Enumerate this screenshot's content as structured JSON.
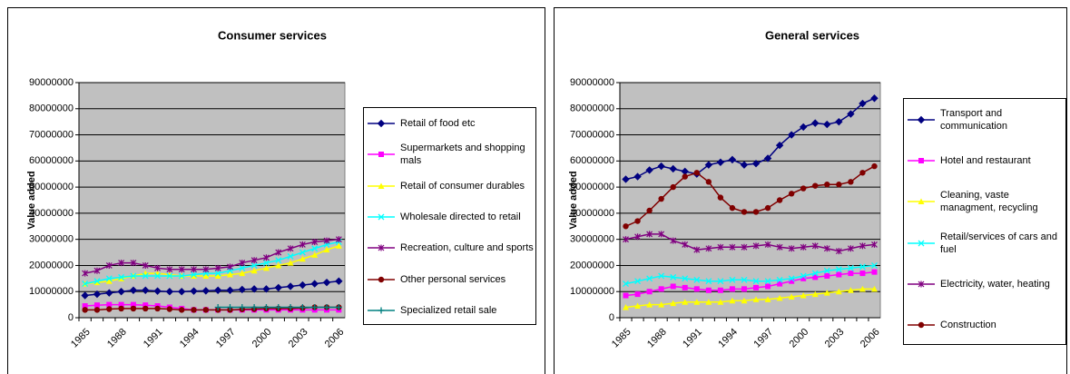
{
  "chart_data": [
    {
      "type": "line",
      "title": "Consumer services",
      "y_label": "Value added",
      "categories": [
        "1985",
        null,
        null,
        "1988",
        null,
        null,
        "1991",
        null,
        null,
        "1994",
        null,
        null,
        "1997",
        null,
        null,
        "2000",
        null,
        null,
        "2003",
        null,
        null,
        "2006"
      ],
      "ylim": [
        0,
        90000000
      ],
      "yticks": [
        0,
        10000000,
        20000000,
        30000000,
        40000000,
        50000000,
        60000000,
        70000000,
        80000000,
        90000000
      ],
      "grid": true,
      "series": [
        {
          "name": "Retail of food etc",
          "color": "#000080",
          "marker": "diamond",
          "values": [
            8500000,
            9000000,
            9500000,
            10000000,
            10500000,
            10500000,
            10200000,
            10000000,
            10000000,
            10200000,
            10300000,
            10500000,
            10500000,
            10800000,
            11000000,
            11000000,
            11500000,
            12000000,
            12500000,
            13000000,
            13500000,
            14000000
          ]
        },
        {
          "name": "Supermarkets and shopping mals",
          "color": "#ff00ff",
          "marker": "square",
          "values": [
            4500000,
            4800000,
            5000000,
            5000000,
            5000000,
            4800000,
            4500000,
            4000000,
            3500000,
            3000000,
            3000000,
            3000000,
            3000000,
            3000000,
            3000000,
            3000000,
            3000000,
            3000000,
            3000000,
            3000000,
            3000000,
            3000000
          ]
        },
        {
          "name": "Retail of consumer durables",
          "color": "#ffff00",
          "marker": "triangle",
          "values": [
            13000000,
            13500000,
            14000000,
            15000000,
            16000000,
            17000000,
            17000000,
            16500000,
            16000000,
            16000000,
            16000000,
            16000000,
            16500000,
            17000000,
            18000000,
            19000000,
            20000000,
            21000000,
            22500000,
            24000000,
            26000000,
            27500000
          ]
        },
        {
          "name": "Wholesale directed to retail",
          "color": "#00ffff",
          "marker": "x",
          "values": [
            13000000,
            14000000,
            15000000,
            15500000,
            16000000,
            16000000,
            16000000,
            16000000,
            16000000,
            16500000,
            17000000,
            17000000,
            18000000,
            19000000,
            20000000,
            21000000,
            22000000,
            23500000,
            25000000,
            26500000,
            28000000,
            29000000
          ]
        },
        {
          "name": "Recreation, culture and sports",
          "color": "#800080",
          "marker": "star",
          "values": [
            17000000,
            18000000,
            20000000,
            21000000,
            21000000,
            20000000,
            19000000,
            18500000,
            18500000,
            18500000,
            18500000,
            19000000,
            19500000,
            21000000,
            22000000,
            23000000,
            25000000,
            26500000,
            28000000,
            29000000,
            29500000,
            30000000
          ]
        },
        {
          "name": "Other personal services",
          "color": "#800000",
          "marker": "circle",
          "values": [
            3000000,
            3000000,
            3300000,
            3500000,
            3500000,
            3500000,
            3500000,
            3300000,
            3000000,
            3000000,
            3000000,
            3000000,
            3000000,
            3200000,
            3300000,
            3500000,
            3500000,
            3500000,
            3700000,
            4000000,
            4000000,
            4000000
          ]
        },
        {
          "name": "Specialized retail sale",
          "color": "#008080",
          "marker": "plus",
          "values": [
            null,
            null,
            null,
            null,
            null,
            null,
            null,
            null,
            null,
            null,
            null,
            4000000,
            4000000,
            4000000,
            4000000,
            4000000,
            4000000,
            4000000,
            4000000,
            4000000,
            4000000,
            4000000
          ]
        }
      ]
    },
    {
      "type": "line",
      "title": "General services",
      "y_label": "Value added",
      "categories": [
        "1985",
        null,
        null,
        "1988",
        null,
        null,
        "1991",
        null,
        null,
        "1994",
        null,
        null,
        "1997",
        null,
        null,
        "2000",
        null,
        null,
        "2003",
        null,
        null,
        "2006"
      ],
      "ylim": [
        0,
        90000000
      ],
      "yticks": [
        0,
        10000000,
        20000000,
        30000000,
        40000000,
        50000000,
        60000000,
        70000000,
        80000000,
        90000000
      ],
      "grid": true,
      "series": [
        {
          "name": "Transport and communication",
          "color": "#000080",
          "marker": "diamond",
          "values": [
            53000000,
            54000000,
            56500000,
            58000000,
            57000000,
            56000000,
            55000000,
            58500000,
            59500000,
            60500000,
            58500000,
            59000000,
            61000000,
            66000000,
            70000000,
            73000000,
            74500000,
            74000000,
            75000000,
            78000000,
            82000000,
            84000000
          ]
        },
        {
          "name": "Hotel and restaurant",
          "color": "#ff00ff",
          "marker": "square",
          "values": [
            8500000,
            9000000,
            10000000,
            11000000,
            12000000,
            11500000,
            11000000,
            10500000,
            10500000,
            11000000,
            11000000,
            11500000,
            12000000,
            13000000,
            14000000,
            15000000,
            15500000,
            16000000,
            16500000,
            17000000,
            17000000,
            17500000
          ]
        },
        {
          "name": "Cleaning, vaste managment, recycling",
          "color": "#ffff00",
          "marker": "triangle",
          "values": [
            4000000,
            4500000,
            5000000,
            5000000,
            5500000,
            6000000,
            6000000,
            6000000,
            6000000,
            6500000,
            6500000,
            7000000,
            7000000,
            7500000,
            8000000,
            8500000,
            9000000,
            9500000,
            10000000,
            10500000,
            11000000,
            11000000
          ]
        },
        {
          "name": "Retail/services of cars and fuel",
          "color": "#00ffff",
          "marker": "x",
          "values": [
            13000000,
            14000000,
            15000000,
            16000000,
            15500000,
            15000000,
            14500000,
            14000000,
            14000000,
            14500000,
            14500000,
            14000000,
            14000000,
            14500000,
            15000000,
            16000000,
            17000000,
            18000000,
            18500000,
            19000000,
            19500000,
            20000000
          ]
        },
        {
          "name": "Electricity, water, heating",
          "color": "#800080",
          "marker": "star",
          "values": [
            30000000,
            31000000,
            32000000,
            32000000,
            29500000,
            28000000,
            26000000,
            26500000,
            27000000,
            27000000,
            27000000,
            27500000,
            28000000,
            27000000,
            26500000,
            27000000,
            27500000,
            26500000,
            25500000,
            26500000,
            27500000,
            28000000
          ]
        },
        {
          "name": "Construction",
          "color": "#800000",
          "marker": "circle",
          "values": [
            35000000,
            37000000,
            41000000,
            45500000,
            50000000,
            54000000,
            55500000,
            52000000,
            46000000,
            42000000,
            40500000,
            40500000,
            42000000,
            45000000,
            47500000,
            49500000,
            50500000,
            51000000,
            51000000,
            52000000,
            55500000,
            58000000
          ]
        }
      ]
    }
  ]
}
